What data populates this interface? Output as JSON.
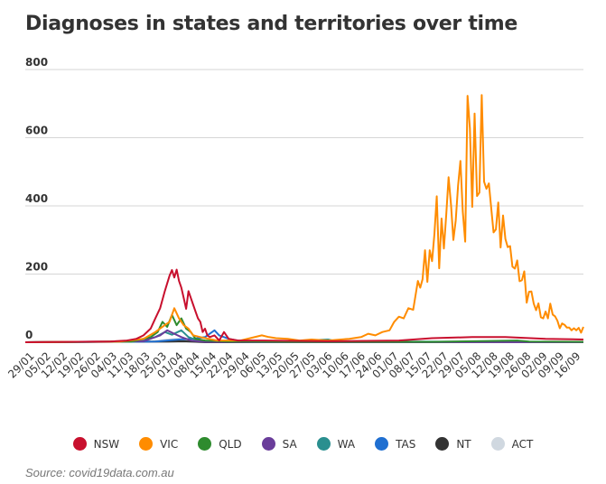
{
  "title": "Diagnoses in states and territories over time",
  "source": "Source: covid19data.com.au",
  "chart_data": {
    "type": "line",
    "ylim": [
      0,
      800
    ],
    "yticks": [
      0,
      200,
      400,
      600,
      800
    ],
    "x_range": [
      "2020-01-25",
      "2020-09-17"
    ],
    "xticks": [
      "29/01",
      "05/02",
      "12/02",
      "19/02",
      "26/02",
      "04/03",
      "11/03",
      "18/03",
      "25/03",
      "01/04",
      "08/04",
      "15/04",
      "22/04",
      "29/04",
      "06/05",
      "13/05",
      "20/05",
      "27/05",
      "03/06",
      "10/06",
      "17/06",
      "24/06",
      "01/07",
      "08/07",
      "15/07",
      "22/07",
      "29/07",
      "05/08",
      "12/08",
      "19/08",
      "26/08",
      "02/09",
      "09/09",
      "16/09"
    ],
    "grid": true,
    "legend_position": "bottom",
    "series": [
      {
        "name": "NSW",
        "color": "#c8102e",
        "points": [
          [
            "2020-01-25",
            0
          ],
          [
            "2020-03-01",
            2
          ],
          [
            "2020-03-08",
            5
          ],
          [
            "2020-03-12",
            10
          ],
          [
            "2020-03-15",
            20
          ],
          [
            "2020-03-18",
            40
          ],
          [
            "2020-03-20",
            70
          ],
          [
            "2020-03-22",
            100
          ],
          [
            "2020-03-24",
            150
          ],
          [
            "2020-03-26",
            195
          ],
          [
            "2020-03-27",
            212
          ],
          [
            "2020-03-28",
            190
          ],
          [
            "2020-03-29",
            213
          ],
          [
            "2020-03-30",
            180
          ],
          [
            "2020-03-31",
            160
          ],
          [
            "2020-04-01",
            130
          ],
          [
            "2020-04-02",
            98
          ],
          [
            "2020-04-03",
            150
          ],
          [
            "2020-04-04",
            130
          ],
          [
            "2020-04-05",
            110
          ],
          [
            "2020-04-06",
            90
          ],
          [
            "2020-04-07",
            70
          ],
          [
            "2020-04-08",
            60
          ],
          [
            "2020-04-09",
            30
          ],
          [
            "2020-04-10",
            40
          ],
          [
            "2020-04-11",
            20
          ],
          [
            "2020-04-12",
            15
          ],
          [
            "2020-04-14",
            20
          ],
          [
            "2020-04-16",
            5
          ],
          [
            "2020-04-18",
            30
          ],
          [
            "2020-04-20",
            10
          ],
          [
            "2020-04-24",
            5
          ],
          [
            "2020-05-05",
            5
          ],
          [
            "2020-06-01",
            3
          ],
          [
            "2020-07-01",
            5
          ],
          [
            "2020-07-15",
            12
          ],
          [
            "2020-08-01",
            15
          ],
          [
            "2020-08-15",
            15
          ],
          [
            "2020-09-01",
            10
          ],
          [
            "2020-09-17",
            8
          ]
        ]
      },
      {
        "name": "VIC",
        "color": "#ff8c00",
        "points": [
          [
            "2020-01-25",
            0
          ],
          [
            "2020-03-05",
            2
          ],
          [
            "2020-03-15",
            10
          ],
          [
            "2020-03-20",
            30
          ],
          [
            "2020-03-24",
            50
          ],
          [
            "2020-03-26",
            60
          ],
          [
            "2020-03-28",
            100
          ],
          [
            "2020-03-30",
            70
          ],
          [
            "2020-04-01",
            50
          ],
          [
            "2020-04-03",
            40
          ],
          [
            "2020-04-05",
            20
          ],
          [
            "2020-04-08",
            15
          ],
          [
            "2020-04-15",
            5
          ],
          [
            "2020-04-25",
            5
          ],
          [
            "2020-05-04",
            20
          ],
          [
            "2020-05-07",
            15
          ],
          [
            "2020-05-10",
            12
          ],
          [
            "2020-05-15",
            10
          ],
          [
            "2020-05-20",
            5
          ],
          [
            "2020-05-25",
            8
          ],
          [
            "2020-06-01",
            5
          ],
          [
            "2020-06-10",
            10
          ],
          [
            "2020-06-15",
            15
          ],
          [
            "2020-06-18",
            25
          ],
          [
            "2020-06-21",
            20
          ],
          [
            "2020-06-24",
            30
          ],
          [
            "2020-06-27",
            35
          ],
          [
            "2020-06-29",
            60
          ],
          [
            "2020-07-01",
            75
          ],
          [
            "2020-07-03",
            70
          ],
          [
            "2020-07-05",
            100
          ],
          [
            "2020-07-07",
            95
          ],
          [
            "2020-07-09",
            180
          ],
          [
            "2020-07-10",
            160
          ],
          [
            "2020-07-11",
            185
          ],
          [
            "2020-07-12",
            270
          ],
          [
            "2020-07-13",
            177
          ],
          [
            "2020-07-14",
            270
          ],
          [
            "2020-07-15",
            238
          ],
          [
            "2020-07-16",
            317
          ],
          [
            "2020-07-17",
            428
          ],
          [
            "2020-07-18",
            217
          ],
          [
            "2020-07-19",
            363
          ],
          [
            "2020-07-20",
            275
          ],
          [
            "2020-07-21",
            374
          ],
          [
            "2020-07-22",
            484
          ],
          [
            "2020-07-23",
            403
          ],
          [
            "2020-07-24",
            300
          ],
          [
            "2020-07-25",
            357
          ],
          [
            "2020-07-26",
            459
          ],
          [
            "2020-07-27",
            532
          ],
          [
            "2020-07-28",
            384
          ],
          [
            "2020-07-29",
            295
          ],
          [
            "2020-07-30",
            723
          ],
          [
            "2020-07-31",
            627
          ],
          [
            "2020-08-01",
            397
          ],
          [
            "2020-08-02",
            671
          ],
          [
            "2020-08-03",
            429
          ],
          [
            "2020-08-04",
            439
          ],
          [
            "2020-08-05",
            725
          ],
          [
            "2020-08-06",
            471
          ],
          [
            "2020-08-07",
            450
          ],
          [
            "2020-08-08",
            466
          ],
          [
            "2020-08-09",
            394
          ],
          [
            "2020-08-10",
            322
          ],
          [
            "2020-08-11",
            331
          ],
          [
            "2020-08-12",
            410
          ],
          [
            "2020-08-13",
            278
          ],
          [
            "2020-08-14",
            372
          ],
          [
            "2020-08-15",
            303
          ],
          [
            "2020-08-16",
            279
          ],
          [
            "2020-08-17",
            282
          ],
          [
            "2020-08-18",
            222
          ],
          [
            "2020-08-19",
            216
          ],
          [
            "2020-08-20",
            240
          ],
          [
            "2020-08-21",
            179
          ],
          [
            "2020-08-22",
            182
          ],
          [
            "2020-08-23",
            208
          ],
          [
            "2020-08-24",
            116
          ],
          [
            "2020-08-25",
            148
          ],
          [
            "2020-08-26",
            149
          ],
          [
            "2020-08-27",
            113
          ],
          [
            "2020-08-28",
            94
          ],
          [
            "2020-08-29",
            114
          ],
          [
            "2020-08-30",
            73
          ],
          [
            "2020-08-31",
            70
          ],
          [
            "2020-09-01",
            90
          ],
          [
            "2020-09-02",
            70
          ],
          [
            "2020-09-03",
            113
          ],
          [
            "2020-09-04",
            81
          ],
          [
            "2020-09-05",
            76
          ],
          [
            "2020-09-06",
            63
          ],
          [
            "2020-09-07",
            41
          ],
          [
            "2020-09-08",
            55
          ],
          [
            "2020-09-09",
            51
          ],
          [
            "2020-09-10",
            43
          ],
          [
            "2020-09-11",
            43
          ],
          [
            "2020-09-12",
            35
          ],
          [
            "2020-09-13",
            41
          ],
          [
            "2020-09-14",
            35
          ],
          [
            "2020-09-15",
            42
          ],
          [
            "2020-09-16",
            28
          ],
          [
            "2020-09-17",
            45
          ]
        ]
      },
      {
        "name": "QLD",
        "color": "#2e8b2e",
        "points": [
          [
            "2020-01-25",
            0
          ],
          [
            "2020-03-10",
            2
          ],
          [
            "2020-03-18",
            15
          ],
          [
            "2020-03-21",
            30
          ],
          [
            "2020-03-23",
            60
          ],
          [
            "2020-03-25",
            45
          ],
          [
            "2020-03-27",
            80
          ],
          [
            "2020-03-29",
            50
          ],
          [
            "2020-03-31",
            70
          ],
          [
            "2020-04-02",
            40
          ],
          [
            "2020-04-04",
            30
          ],
          [
            "2020-04-06",
            10
          ],
          [
            "2020-04-10",
            5
          ],
          [
            "2020-04-20",
            2
          ],
          [
            "2020-05-15",
            1
          ],
          [
            "2020-07-15",
            1
          ],
          [
            "2020-08-20",
            5
          ],
          [
            "2020-08-25",
            2
          ],
          [
            "2020-09-17",
            1
          ]
        ]
      },
      {
        "name": "SA",
        "color": "#6a3d9a",
        "points": [
          [
            "2020-01-25",
            0
          ],
          [
            "2020-03-15",
            3
          ],
          [
            "2020-03-22",
            20
          ],
          [
            "2020-03-25",
            35
          ],
          [
            "2020-03-28",
            25
          ],
          [
            "2020-03-31",
            15
          ],
          [
            "2020-04-04",
            5
          ],
          [
            "2020-04-10",
            1
          ],
          [
            "2020-05-01",
            0
          ],
          [
            "2020-09-17",
            0
          ]
        ]
      },
      {
        "name": "WA",
        "color": "#2a8f8f",
        "points": [
          [
            "2020-01-25",
            0
          ],
          [
            "2020-03-12",
            2
          ],
          [
            "2020-03-20",
            15
          ],
          [
            "2020-03-24",
            30
          ],
          [
            "2020-03-27",
            22
          ],
          [
            "2020-03-31",
            35
          ],
          [
            "2020-04-03",
            15
          ],
          [
            "2020-04-07",
            5
          ],
          [
            "2020-04-15",
            2
          ],
          [
            "2020-05-10",
            1
          ],
          [
            "2020-06-01",
            8
          ],
          [
            "2020-06-05",
            2
          ],
          [
            "2020-09-17",
            1
          ]
        ]
      },
      {
        "name": "TAS",
        "color": "#1f6fd1",
        "points": [
          [
            "2020-01-25",
            0
          ],
          [
            "2020-03-20",
            2
          ],
          [
            "2020-03-25",
            5
          ],
          [
            "2020-03-30",
            8
          ],
          [
            "2020-04-05",
            10
          ],
          [
            "2020-04-10",
            15
          ],
          [
            "2020-04-14",
            35
          ],
          [
            "2020-04-16",
            20
          ],
          [
            "2020-04-20",
            10
          ],
          [
            "2020-04-25",
            3
          ],
          [
            "2020-05-05",
            1
          ],
          [
            "2020-09-17",
            0
          ]
        ]
      },
      {
        "name": "NT",
        "color": "#333333",
        "points": [
          [
            "2020-01-25",
            0
          ],
          [
            "2020-03-25",
            2
          ],
          [
            "2020-04-01",
            3
          ],
          [
            "2020-04-10",
            0
          ],
          [
            "2020-09-17",
            0
          ]
        ]
      },
      {
        "name": "ACT",
        "color": "#d0d8e0",
        "points": [
          [
            "2020-01-25",
            0
          ],
          [
            "2020-03-20",
            3
          ],
          [
            "2020-03-25",
            8
          ],
          [
            "2020-03-30",
            10
          ],
          [
            "2020-04-05",
            3
          ],
          [
            "2020-04-15",
            0
          ],
          [
            "2020-09-17",
            0
          ]
        ]
      }
    ]
  }
}
